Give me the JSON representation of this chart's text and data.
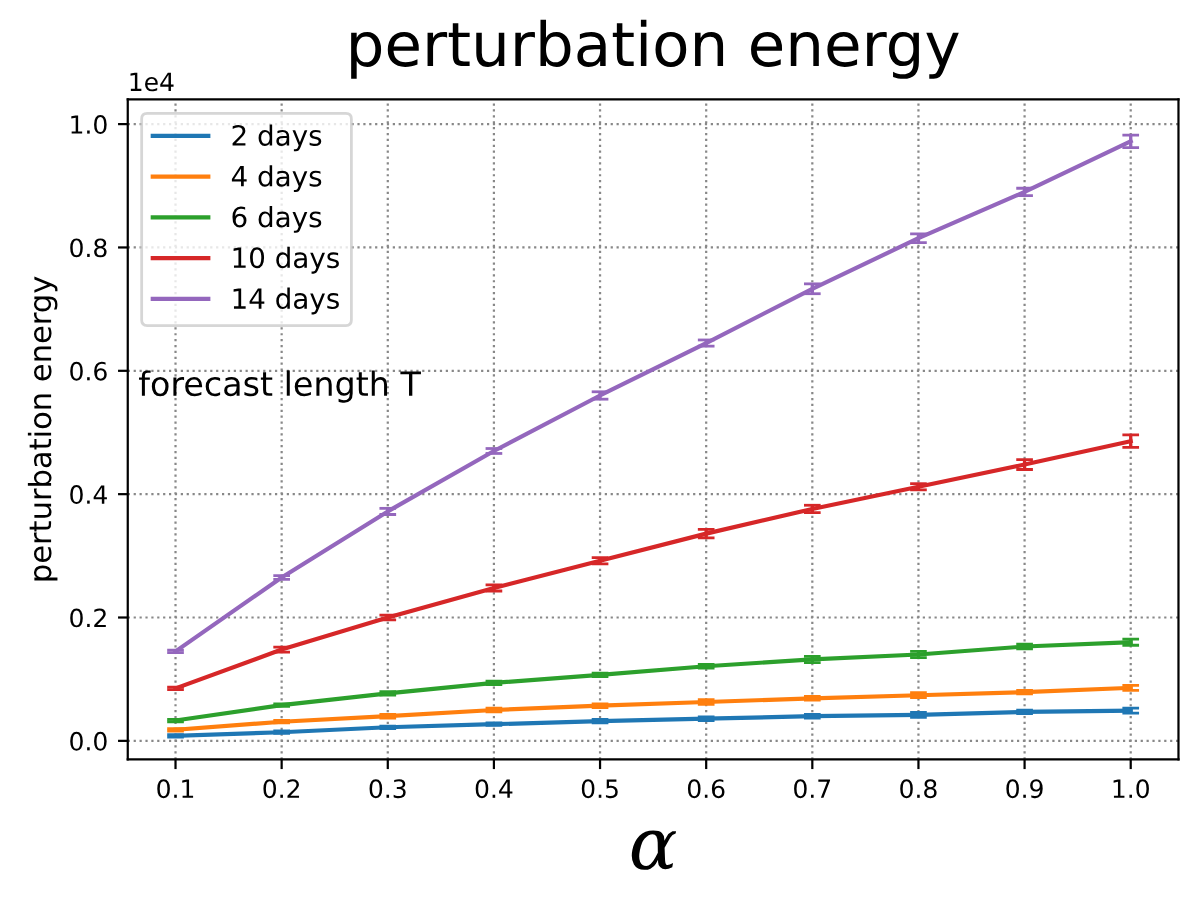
{
  "chart_data": {
    "type": "line",
    "title": "perturbation energy",
    "xlabel": "α",
    "ylabel": "perturbation energy",
    "x": [
      0.1,
      0.2,
      0.3,
      0.4,
      0.5,
      0.6,
      0.7,
      0.8,
      0.9,
      1.0
    ],
    "series": [
      {
        "name": "2 days",
        "color": "#1f77b4",
        "values": [
          0.008,
          0.014,
          0.022,
          0.027,
          0.032,
          0.036,
          0.04,
          0.042,
          0.047,
          0.049
        ],
        "errors": [
          0.002,
          0.002,
          0.002,
          0.002,
          0.003,
          0.003,
          0.003,
          0.004,
          0.003,
          0.004
        ]
      },
      {
        "name": "4 days",
        "color": "#ff7f0e",
        "values": [
          0.018,
          0.031,
          0.04,
          0.05,
          0.057,
          0.063,
          0.069,
          0.074,
          0.079,
          0.086
        ],
        "errors": [
          0.002,
          0.002,
          0.003,
          0.003,
          0.003,
          0.004,
          0.003,
          0.004,
          0.003,
          0.004
        ]
      },
      {
        "name": "6 days",
        "color": "#2ca02c",
        "values": [
          0.033,
          0.058,
          0.077,
          0.094,
          0.107,
          0.121,
          0.132,
          0.14,
          0.153,
          0.16
        ],
        "errors": [
          0.002,
          0.002,
          0.003,
          0.003,
          0.003,
          0.003,
          0.005,
          0.005,
          0.004,
          0.005
        ]
      },
      {
        "name": "10 days",
        "color": "#d62728",
        "values": [
          0.085,
          0.148,
          0.2,
          0.248,
          0.292,
          0.336,
          0.376,
          0.412,
          0.448,
          0.486
        ],
        "errors": [
          0.002,
          0.004,
          0.004,
          0.005,
          0.005,
          0.007,
          0.006,
          0.005,
          0.008,
          0.01
        ]
      },
      {
        "name": "14 days",
        "color": "#9467bd",
        "values": [
          0.145,
          0.265,
          0.372,
          0.47,
          0.56,
          0.645,
          0.733,
          0.815,
          0.89,
          0.972
        ],
        "errors": [
          0.002,
          0.003,
          0.005,
          0.004,
          0.006,
          0.005,
          0.008,
          0.007,
          0.006,
          0.01
        ]
      }
    ],
    "annotations": [
      "1e4",
      "forecast length T"
    ],
    "xlim": [
      0.055,
      1.045
    ],
    "xticks": [
      0.1,
      0.2,
      0.3,
      0.4,
      0.5,
      0.6,
      0.7,
      0.8,
      0.9,
      {
        "value": 1.0,
        "label": "1.0"
      }
    ],
    "ylim": [
      -0.03,
      1.04
    ],
    "yticks": [
      {
        "value": 0,
        "label": "0.0"
      },
      0.2,
      0.4,
      0.6,
      0.8,
      {
        "value": 1.0,
        "label": "1.0"
      }
    ],
    "grid": true,
    "legend": "top left",
    "marker": "none",
    "line_style": "solid"
  }
}
